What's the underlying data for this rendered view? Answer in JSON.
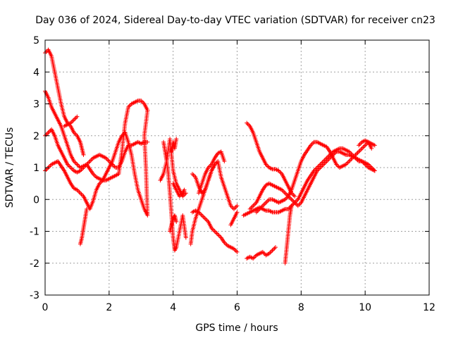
{
  "chart_data": {
    "type": "scatter",
    "title": "Day 036 of 2024, Sidereal Day-to-day VTEC variation (SDTVAR) for receiver cn23",
    "xlabel": "GPS time / hours",
    "ylabel": "SDTVAR / TECUs",
    "xlim": [
      0,
      12
    ],
    "ylim": [
      -3,
      5
    ],
    "xticks": [
      "0",
      "2",
      "4",
      "6",
      "8",
      "10",
      "12"
    ],
    "yticks": [
      "-3",
      "-2",
      "-1",
      "0",
      "1",
      "2",
      "3",
      "4",
      "5"
    ],
    "grid": true,
    "marker": "+",
    "color": "#ff0000",
    "series": [
      {
        "x": [
          0.0,
          0.1,
          0.2,
          0.3,
          0.4,
          0.5,
          0.6,
          0.7,
          0.8,
          0.9,
          1.0,
          1.1,
          1.2,
          1.3,
          1.4,
          1.5,
          1.6,
          1.7,
          1.8,
          1.9,
          2.0,
          2.1,
          2.2,
          2.3,
          2.4,
          2.5
        ],
        "y": [
          0.9,
          1.0,
          1.1,
          1.15,
          1.2,
          1.05,
          0.9,
          0.7,
          0.5,
          0.35,
          0.3,
          0.2,
          0.1,
          -0.1,
          -0.3,
          -0.05,
          0.3,
          0.5,
          0.6,
          0.8,
          1.0,
          1.2,
          1.5,
          1.8,
          2.0,
          2.1
        ]
      },
      {
        "x": [
          2.5,
          2.6,
          2.7,
          2.8,
          2.9,
          3.0,
          3.1,
          3.2,
          3.15,
          3.1,
          3.2
        ],
        "y": [
          2.1,
          1.8,
          1.4,
          0.8,
          0.3,
          0.0,
          -0.3,
          -0.5,
          1.0,
          2.0,
          2.8
        ]
      },
      {
        "x": [
          0.0,
          0.1,
          0.2,
          0.3,
          0.4,
          0.5,
          0.6,
          0.7,
          0.8,
          0.9,
          1.0,
          1.1,
          1.2,
          1.3,
          1.4,
          1.5,
          1.6,
          1.7,
          1.8,
          1.9,
          2.0,
          2.1,
          2.2,
          2.3,
          2.4,
          2.5,
          2.6,
          2.7,
          2.8,
          2.9,
          3.0,
          3.1,
          3.2
        ],
        "y": [
          2.0,
          2.1,
          2.2,
          2.0,
          1.7,
          1.5,
          1.3,
          1.1,
          1.0,
          0.9,
          0.85,
          0.9,
          1.0,
          1.1,
          1.2,
          1.3,
          1.35,
          1.4,
          1.35,
          1.3,
          1.2,
          1.1,
          1.0,
          1.0,
          1.2,
          1.5,
          1.7,
          1.7,
          1.75,
          1.8,
          1.75,
          1.8,
          1.8
        ]
      },
      {
        "x": [
          0.0,
          0.1,
          0.2,
          0.3,
          0.4,
          0.5,
          0.6,
          0.7,
          0.8,
          0.9,
          1.0,
          1.1,
          1.2,
          1.3,
          1.4,
          1.5,
          1.6,
          1.7,
          1.8,
          1.9,
          2.0,
          2.1,
          2.2,
          2.3,
          2.4,
          2.5,
          2.6,
          2.7,
          2.8,
          2.9,
          3.0,
          3.1,
          3.2
        ],
        "y": [
          3.4,
          3.2,
          2.9,
          2.7,
          2.5,
          2.3,
          2.0,
          1.7,
          1.4,
          1.2,
          1.1,
          1.0,
          1.05,
          1.1,
          0.95,
          0.8,
          0.7,
          0.65,
          0.6,
          0.6,
          0.65,
          0.7,
          0.75,
          0.8,
          1.5,
          2.4,
          2.9,
          3.0,
          3.05,
          3.1,
          3.1,
          3.0,
          2.8
        ]
      },
      {
        "x": [
          0.0,
          0.1,
          0.2,
          0.3,
          0.4,
          0.5,
          0.6,
          0.7,
          0.8,
          0.9,
          1.0,
          1.1,
          1.15,
          1.2
        ],
        "y": [
          4.6,
          4.7,
          4.5,
          4.0,
          3.5,
          3.0,
          2.6,
          2.4,
          2.3,
          2.1,
          2.0,
          1.8,
          1.6,
          1.4
        ]
      },
      {
        "x": [
          0.6,
          0.7,
          0.8,
          0.9,
          1.0
        ],
        "y": [
          2.3,
          2.35,
          2.4,
          2.5,
          2.6
        ]
      },
      {
        "x": [
          1.1,
          1.15,
          1.2,
          1.25,
          1.3
        ],
        "y": [
          -1.4,
          -1.2,
          -0.9,
          -0.6,
          -0.3
        ]
      },
      {
        "x": [
          3.7,
          3.75,
          3.8,
          3.85,
          3.9,
          3.95,
          4.0,
          4.05,
          4.1,
          4.2,
          4.3,
          4.4
        ],
        "y": [
          1.8,
          1.5,
          1.2,
          0.8,
          0.2,
          -0.5,
          -1.2,
          -1.6,
          -1.5,
          -1.0,
          -0.5,
          -1.2
        ]
      },
      {
        "x": [
          3.6,
          3.7,
          3.8,
          3.9,
          4.0,
          4.1,
          4.2,
          4.3,
          4.4
        ],
        "y": [
          0.6,
          0.8,
          1.2,
          1.9,
          0.9,
          0.5,
          0.3,
          0.1,
          0.2
        ]
      },
      {
        "x": [
          3.9,
          3.95,
          4.0,
          4.05,
          4.1
        ],
        "y": [
          -1.0,
          -0.8,
          -0.6,
          -0.5,
          -0.7
        ]
      },
      {
        "x": [
          4.0,
          4.1,
          4.2,
          4.3,
          4.35
        ],
        "y": [
          0.5,
          0.3,
          0.1,
          0.2,
          0.3
        ]
      },
      {
        "x": [
          3.95,
          4.0,
          4.05,
          4.1
        ],
        "y": [
          1.5,
          1.8,
          1.6,
          1.9
        ]
      },
      {
        "x": [
          4.55,
          4.6,
          4.7,
          4.8,
          4.9,
          5.0,
          5.1,
          5.2,
          5.3
        ],
        "y": [
          -1.4,
          -1.0,
          -0.6,
          -0.3,
          0.0,
          0.3,
          0.6,
          0.9,
          1.1
        ]
      },
      {
        "x": [
          4.6,
          4.7,
          4.8,
          4.9,
          5.0,
          5.1,
          5.2,
          5.3,
          5.4,
          5.5,
          5.6,
          5.7,
          5.8,
          5.9,
          6.0
        ],
        "y": [
          -0.4,
          -0.35,
          -0.4,
          -0.5,
          -0.6,
          -0.7,
          -0.9,
          -1.0,
          -1.1,
          -1.2,
          -1.35,
          -1.45,
          -1.5,
          -1.55,
          -1.65
        ]
      },
      {
        "x": [
          4.6,
          4.7,
          4.8,
          4.9,
          5.0,
          5.1,
          5.2,
          5.3,
          5.4,
          5.5,
          5.6,
          5.7,
          5.8,
          5.9,
          6.0
        ],
        "y": [
          0.8,
          0.7,
          0.4,
          0.2,
          0.3,
          0.6,
          0.9,
          1.1,
          1.2,
          0.7,
          0.4,
          0.1,
          -0.2,
          -0.3,
          -0.2
        ]
      },
      {
        "x": [
          4.8,
          4.9,
          5.0,
          5.1,
          5.2,
          5.3,
          5.4,
          5.5,
          5.6
        ],
        "y": [
          0.2,
          0.5,
          0.8,
          1.0,
          1.1,
          1.3,
          1.45,
          1.5,
          1.2
        ]
      },
      {
        "x": [
          5.8,
          5.9,
          6.0
        ],
        "y": [
          -0.8,
          -0.6,
          -0.4
        ]
      },
      {
        "x": [
          6.3,
          6.4,
          6.5,
          6.6,
          6.7,
          6.8,
          6.9,
          7.0,
          7.1,
          7.2
        ],
        "y": [
          -1.85,
          -1.8,
          -1.85,
          -1.75,
          -1.7,
          -1.65,
          -1.75,
          -1.7,
          -1.6,
          -1.5
        ]
      },
      {
        "x": [
          6.3,
          6.4,
          6.5,
          6.6,
          6.7,
          6.8,
          6.9,
          7.0,
          7.1,
          7.2,
          7.3,
          7.4,
          7.5,
          7.6,
          7.7,
          7.8
        ],
        "y": [
          2.4,
          2.3,
          2.1,
          1.8,
          1.5,
          1.3,
          1.1,
          1.0,
          0.95,
          0.95,
          0.9,
          0.8,
          0.6,
          0.4,
          0.2,
          0.1
        ]
      },
      {
        "x": [
          6.2,
          6.3,
          6.4,
          6.5,
          6.6,
          6.7,
          6.8,
          6.9,
          7.0,
          7.1,
          7.2,
          7.3,
          7.4,
          7.5,
          7.6,
          7.7,
          7.8,
          7.9,
          8.0,
          8.1,
          8.2,
          8.3,
          8.4,
          8.5,
          8.6,
          8.7,
          8.8,
          8.9,
          9.0,
          9.1,
          9.2,
          9.3,
          9.4,
          9.5,
          9.6,
          9.7,
          9.8,
          9.9,
          10.0,
          10.1,
          10.2,
          10.3
        ],
        "y": [
          -0.5,
          -0.45,
          -0.4,
          -0.35,
          -0.3,
          -0.25,
          -0.3,
          -0.35,
          -0.35,
          -0.4,
          -0.4,
          -0.4,
          -0.35,
          -0.3,
          -0.3,
          -0.2,
          -0.1,
          0.0,
          0.2,
          0.4,
          0.6,
          0.75,
          0.9,
          1.0,
          1.1,
          1.2,
          1.3,
          1.4,
          1.5,
          1.55,
          1.6,
          1.6,
          1.55,
          1.5,
          1.4,
          1.3,
          1.2,
          1.2,
          1.15,
          1.1,
          1.0,
          0.9
        ]
      },
      {
        "x": [
          6.4,
          6.5,
          6.6,
          6.7,
          6.8,
          6.9,
          7.0,
          7.1,
          7.2,
          7.3,
          7.4,
          7.5,
          7.6,
          7.7,
          7.8,
          7.9,
          8.0,
          8.1,
          8.2,
          8.3,
          8.4,
          8.5,
          8.6,
          8.7,
          8.8,
          8.9,
          9.0,
          9.1,
          9.2,
          9.3,
          9.4,
          9.5,
          9.6,
          9.7,
          9.8,
          9.9,
          10.0,
          10.1,
          10.2,
          10.3
        ],
        "y": [
          -0.3,
          -0.2,
          -0.1,
          0.1,
          0.3,
          0.45,
          0.5,
          0.45,
          0.4,
          0.35,
          0.3,
          0.2,
          0.1,
          0.0,
          -0.1,
          -0.2,
          -0.1,
          0.1,
          0.3,
          0.5,
          0.7,
          0.9,
          1.0,
          1.1,
          1.2,
          1.3,
          1.4,
          1.5,
          1.5,
          1.45,
          1.4,
          1.4,
          1.35,
          1.3,
          1.25,
          1.2,
          1.1,
          1.0,
          0.95,
          0.9
        ]
      },
      {
        "x": [
          6.6,
          6.7,
          6.8,
          6.9,
          7.0,
          7.1,
          7.2,
          7.3,
          7.4,
          7.5,
          7.6,
          7.7,
          7.8,
          7.9,
          8.0,
          8.1,
          8.2,
          8.3,
          8.4,
          8.5,
          8.6,
          8.7,
          8.8,
          8.9,
          9.0,
          9.1,
          9.2,
          9.3,
          9.4,
          9.5,
          9.6,
          9.7,
          9.8,
          9.9,
          10.0,
          10.1,
          10.2,
          10.3
        ],
        "y": [
          -0.4,
          -0.3,
          -0.2,
          -0.1,
          0.0,
          0.0,
          -0.05,
          -0.1,
          -0.05,
          0.0,
          0.1,
          0.3,
          0.6,
          0.9,
          1.2,
          1.4,
          1.55,
          1.7,
          1.8,
          1.8,
          1.75,
          1.7,
          1.65,
          1.5,
          1.3,
          1.1,
          1.0,
          1.05,
          1.1,
          1.2,
          1.3,
          1.4,
          1.5,
          1.6,
          1.7,
          1.8,
          1.75,
          1.7
        ]
      },
      {
        "x": [
          7.5,
          7.55,
          7.6,
          7.65,
          7.7
        ],
        "y": [
          -2.0,
          -1.5,
          -1.0,
          -0.5,
          -0.2
        ]
      },
      {
        "x": [
          9.8,
          9.9,
          10.0,
          10.1,
          10.2
        ],
        "y": [
          1.7,
          1.8,
          1.85,
          1.8,
          1.6
        ]
      }
    ]
  }
}
